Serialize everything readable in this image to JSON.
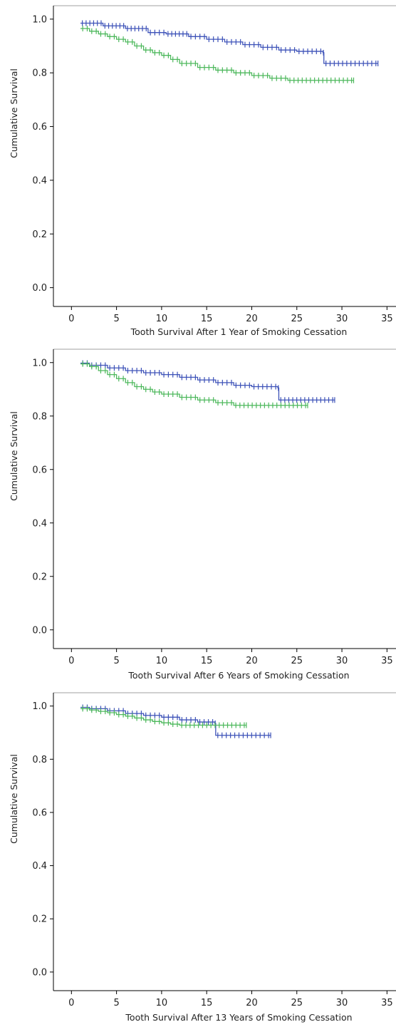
{
  "chart_data": [
    {
      "type": "line",
      "subtype": "kaplan-meier",
      "title": "",
      "xlabel": "Tooth Survival After 1 Year of Smoking Cessation",
      "ylabel": "Cumulative Survival",
      "xlim": [
        -2,
        36
      ],
      "ylim": [
        -0.07,
        1.05
      ],
      "xticks": [
        0,
        5,
        10,
        15,
        20,
        25,
        30,
        35
      ],
      "yticks": [
        0.0,
        0.2,
        0.4,
        0.6,
        0.8,
        1.0
      ],
      "ytick_labels": [
        "0.0",
        "0.2",
        "0.4",
        "0.6",
        "0.8",
        "1.0"
      ],
      "grid": false,
      "legend": "none",
      "series": [
        {
          "color": "#3d52b8",
          "x": [
            1,
            3.5,
            6,
            8.5,
            10.5,
            13,
            15,
            17,
            19,
            21,
            23,
            25,
            27.9,
            28,
            34
          ],
          "y": [
            0.985,
            0.975,
            0.965,
            0.95,
            0.945,
            0.935,
            0.925,
            0.915,
            0.905,
            0.895,
            0.885,
            0.88,
            0.875,
            0.835,
            0.835
          ]
        },
        {
          "color": "#4db85c",
          "x": [
            1,
            2,
            3,
            4,
            5,
            6,
            7,
            8,
            9,
            10,
            11,
            12,
            14,
            16,
            18,
            20,
            22,
            24,
            31.3
          ],
          "y": [
            0.965,
            0.955,
            0.945,
            0.935,
            0.925,
            0.915,
            0.9,
            0.885,
            0.875,
            0.865,
            0.85,
            0.835,
            0.82,
            0.81,
            0.8,
            0.79,
            0.78,
            0.772,
            0.772
          ]
        }
      ]
    },
    {
      "type": "line",
      "subtype": "kaplan-meier",
      "title": "",
      "xlabel": "Tooth Survival After 6 Years of Smoking Cessation",
      "ylabel": "Cumulative Survival",
      "xlim": [
        -2,
        36
      ],
      "ylim": [
        -0.07,
        1.05
      ],
      "xticks": [
        0,
        5,
        10,
        15,
        20,
        25,
        30,
        35
      ],
      "yticks": [
        0.0,
        0.2,
        0.4,
        0.6,
        0.8,
        1.0
      ],
      "ytick_labels": [
        "0.0",
        "0.2",
        "0.4",
        "0.6",
        "0.8",
        "1.0"
      ],
      "grid": false,
      "legend": "none",
      "series": [
        {
          "color": "#3d52b8",
          "x": [
            1,
            2,
            4,
            6,
            8,
            10,
            12,
            14,
            16,
            18,
            20,
            22.9,
            23,
            29.2
          ],
          "y": [
            0.998,
            0.99,
            0.98,
            0.97,
            0.962,
            0.955,
            0.945,
            0.935,
            0.925,
            0.915,
            0.91,
            0.905,
            0.86,
            0.86
          ]
        },
        {
          "color": "#4db85c",
          "x": [
            1,
            2,
            3,
            4,
            5,
            6,
            7,
            8,
            9,
            10,
            12,
            14,
            16,
            18,
            26.2
          ],
          "y": [
            0.995,
            0.985,
            0.97,
            0.955,
            0.94,
            0.925,
            0.91,
            0.9,
            0.89,
            0.882,
            0.87,
            0.86,
            0.85,
            0.84,
            0.84
          ]
        }
      ]
    },
    {
      "type": "line",
      "subtype": "kaplan-meier",
      "title": "",
      "xlabel": "Tooth Survival After 13 Years of Smoking Cessation",
      "ylabel": "Cumulative Survival",
      "xlim": [
        -2,
        36
      ],
      "ylim": [
        -0.07,
        1.05
      ],
      "xticks": [
        0,
        5,
        10,
        15,
        20,
        25,
        30,
        35
      ],
      "yticks": [
        0.0,
        0.2,
        0.4,
        0.6,
        0.8,
        1.0
      ],
      "ytick_labels": [
        "0.0",
        "0.2",
        "0.4",
        "0.6",
        "0.8",
        "1.0"
      ],
      "grid": false,
      "legend": "none",
      "series": [
        {
          "color": "#3d52b8",
          "x": [
            1,
            2,
            4,
            6,
            8,
            10,
            12,
            14,
            15.9,
            16,
            22.1
          ],
          "y": [
            0.995,
            0.99,
            0.982,
            0.972,
            0.965,
            0.958,
            0.948,
            0.94,
            0.935,
            0.89,
            0.89
          ]
        },
        {
          "color": "#4db85c",
          "x": [
            1,
            2,
            3,
            4,
            5,
            6,
            7,
            8,
            9,
            10,
            11,
            12,
            19.4
          ],
          "y": [
            0.99,
            0.985,
            0.98,
            0.975,
            0.968,
            0.962,
            0.955,
            0.948,
            0.942,
            0.937,
            0.932,
            0.928,
            0.928
          ]
        }
      ]
    }
  ]
}
